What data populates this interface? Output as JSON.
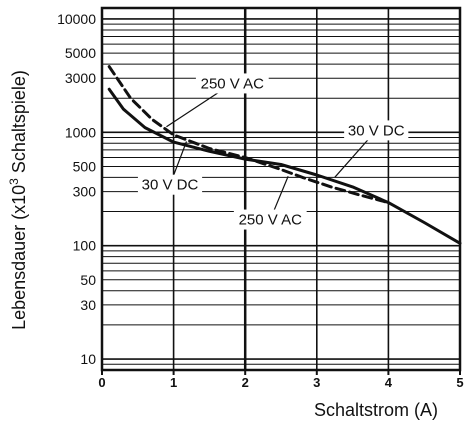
{
  "chart_data": {
    "type": "line",
    "xlabel": "Schaltstrom (A)",
    "ylabel": "Lebensdauer (x10",
    "ylabel_sup": "3",
    "ylabel_tail": " Schaltspiele)",
    "xlim": [
      0,
      5
    ],
    "ylim": [
      8,
      12500
    ],
    "yscale": "log",
    "grid": true,
    "x_ticks": [
      "0",
      "1",
      "2",
      "3",
      "4",
      "5"
    ],
    "y_ticks": [
      "10",
      "30",
      "50",
      "100",
      "300",
      "500",
      "1000",
      "3000",
      "5000",
      "10000"
    ],
    "series": [
      {
        "name": "30 V DC",
        "style": "solid",
        "color": "#111111",
        "x": [
          0.1,
          0.3,
          0.6,
          1.0,
          1.5,
          2.0,
          2.5,
          3.0,
          3.5,
          4.0,
          4.5,
          5.0
        ],
        "y": [
          2400,
          1600,
          1100,
          820,
          680,
          580,
          520,
          420,
          330,
          240,
          160,
          105
        ]
      },
      {
        "name": "250 V AC",
        "style": "dashed",
        "color": "#111111",
        "x": [
          0.1,
          0.4,
          0.7,
          1.0,
          1.5,
          2.0,
          2.5,
          2.8,
          3.2,
          3.6,
          4.0
        ],
        "y": [
          3800,
          2000,
          1300,
          950,
          720,
          600,
          470,
          400,
          330,
          280,
          240
        ]
      }
    ],
    "annotations": [
      {
        "text": "250 V AC",
        "label_x": 1.82,
        "label_y": 2700,
        "target_x": 0.9,
        "target_y": 1120
      },
      {
        "text": "30 V DC",
        "label_x": 0.95,
        "label_y": 345,
        "target_x": 1.18,
        "target_y": 830
      },
      {
        "text": "30 V DC",
        "label_x": 3.83,
        "label_y": 1040,
        "target_x": 3.25,
        "target_y": 400
      },
      {
        "text": "250 V AC",
        "label_x": 2.35,
        "label_y": 170,
        "target_x": 2.6,
        "target_y": 410
      }
    ]
  }
}
